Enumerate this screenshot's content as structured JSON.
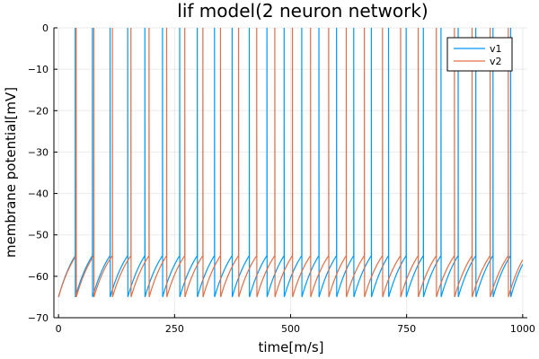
{
  "chart_data": {
    "type": "line",
    "title": "lif model(2 neuron network)",
    "xlabel": "time[m/s]",
    "ylabel": "membrane potential[mV]",
    "xlim": [
      -10,
      1010
    ],
    "ylim": [
      -70,
      0
    ],
    "xticks": [
      0,
      250,
      500,
      750,
      1000
    ],
    "xtick_labels": [
      "0",
      "250",
      "500",
      "750",
      "1000"
    ],
    "yticks": [
      -70,
      -60,
      -50,
      -40,
      -30,
      -20,
      -10,
      0
    ],
    "ytick_labels": [
      "−70",
      "−60",
      "−50",
      "−40",
      "−30",
      "−20",
      "−10",
      "0"
    ],
    "grid": true,
    "legend": "top-right",
    "v_rest": -65,
    "v_threshold": -55,
    "v_spike": 0,
    "series": [
      {
        "name": "v1",
        "color": "#009AFA",
        "spike_times": [
          36,
          73,
          111,
          149,
          186,
          224,
          261,
          299,
          336,
          374,
          411,
          449,
          486,
          524,
          561,
          599,
          636,
          674,
          711,
          749,
          786,
          824,
          861,
          899,
          936,
          974
        ]
      },
      {
        "name": "v2",
        "color": "#E26F46",
        "spike_times": [
          38,
          76,
          116,
          156,
          195,
          233,
          272,
          311,
          349,
          388,
          427,
          466,
          504,
          543,
          582,
          620,
          659,
          698,
          737,
          775,
          814,
          853,
          891,
          930,
          969
        ]
      }
    ]
  }
}
